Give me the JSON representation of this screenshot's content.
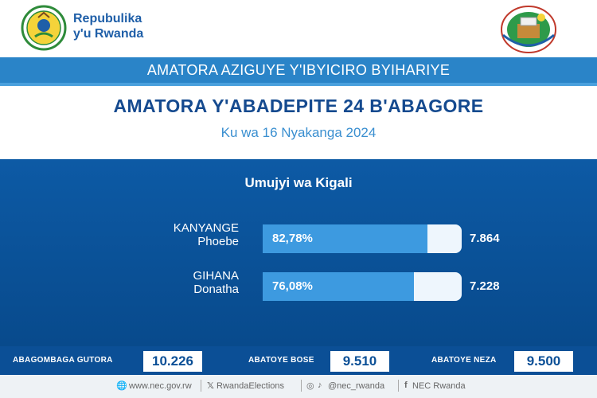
{
  "header": {
    "brand_line1": "Repubulika",
    "brand_line2": "y'u Rwanda"
  },
  "banner": {
    "text": "AMATORA AZIGUYE Y'IBYICIRO BYIHARIYE"
  },
  "title": "AMATORA Y'ABADEPITE 24 B'ABAGORE",
  "subtitle": "Ku wa 16 Nyakanga 2024",
  "panel": {
    "region": "Umujyi wa Kigali",
    "candidates": [
      {
        "surname": "KANYANGE",
        "given": "Phoebe",
        "percent_label": "82,78%",
        "percent": 82.78,
        "votes": "7.864"
      },
      {
        "surname": "GIHANA",
        "given": "Donatha",
        "percent_label": "76,08%",
        "percent": 76.08,
        "votes": "7.228"
      }
    ]
  },
  "stats": {
    "registered_label": "ABAGOMBAGA GUTORA",
    "registered_value": "10.226",
    "voted_label": "ABATOYE BOSE",
    "voted_value": "9.510",
    "valid_label": "ABATOYE NEZA",
    "valid_value": "9.500"
  },
  "contacts": {
    "website": "www.nec.gov.rw",
    "x_handle": "RwandaElections",
    "ig_tiktok": "@nec_rwanda",
    "facebook": "NEC Rwanda"
  },
  "colors": {
    "brand_blue": "#154a8f",
    "banner_blue": "#2a84c8",
    "panel_blue": "#0d5aa5",
    "bar_fill": "#3d9ae0"
  }
}
